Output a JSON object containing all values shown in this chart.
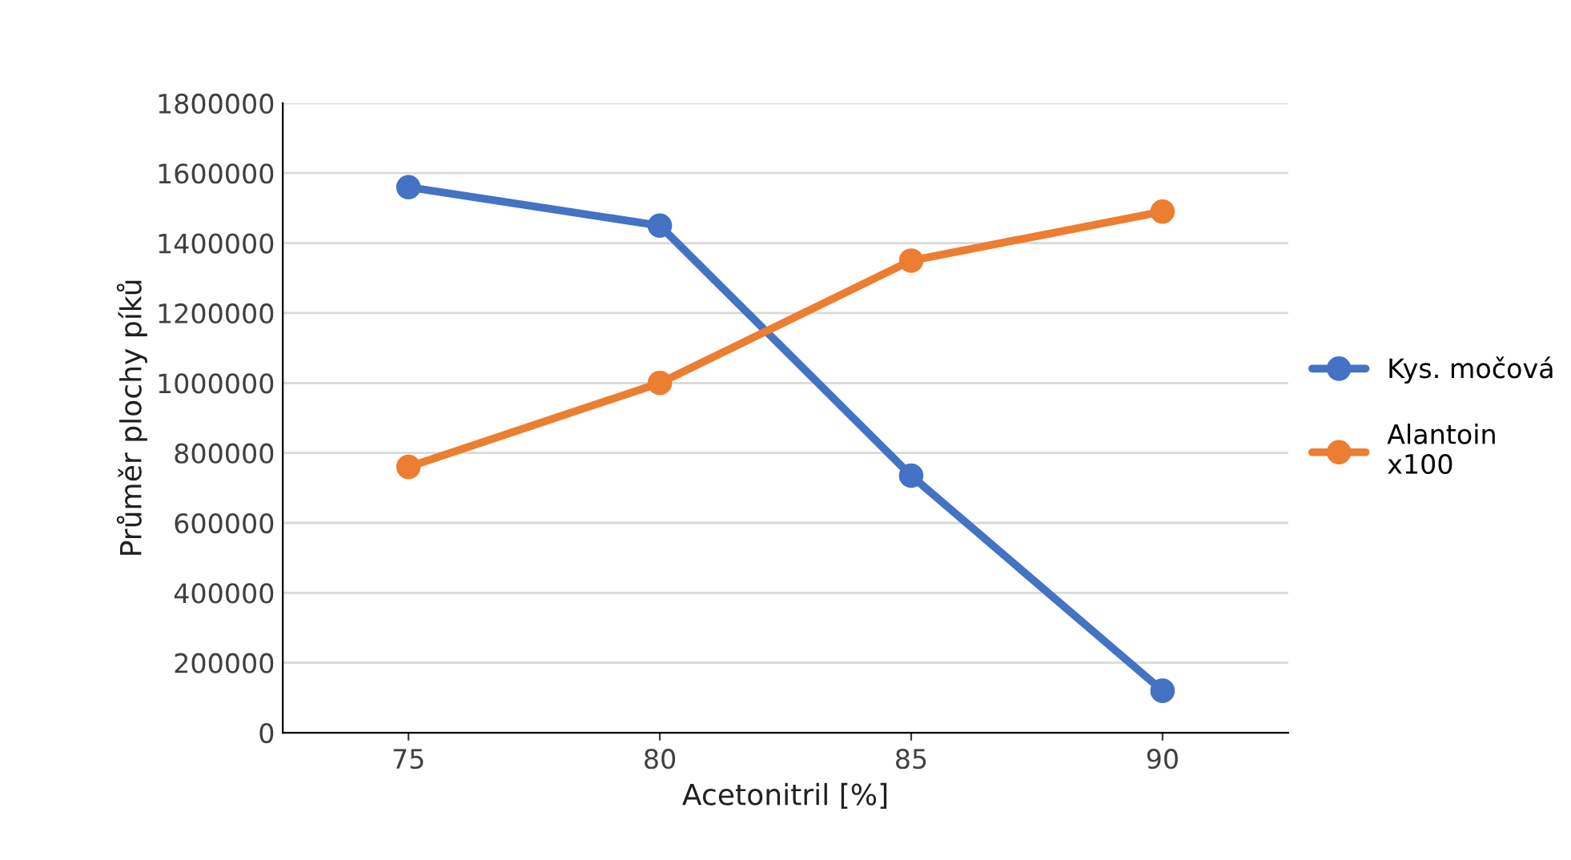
{
  "chart_data": {
    "type": "line",
    "xlabel": "Acetonitril [%]",
    "ylabel": "Průměr plochy píků",
    "categories": [
      "75",
      "80",
      "85",
      "90"
    ],
    "series": [
      {
        "name": "Kys. močová",
        "color": "#4472c4",
        "values": [
          1560000,
          1450000,
          735000,
          120000
        ]
      },
      {
        "name": "Alantoin\nx100",
        "color": "#ed7d31",
        "values": [
          760000,
          1000000,
          1350000,
          1490000
        ]
      }
    ],
    "ylim": [
      0,
      1800000
    ],
    "yticks": [
      0,
      200000,
      400000,
      600000,
      800000,
      1000000,
      1200000,
      1400000,
      1600000,
      1800000
    ],
    "grid": "y",
    "legend": "right",
    "marker": "circle",
    "line_style": "solid"
  }
}
